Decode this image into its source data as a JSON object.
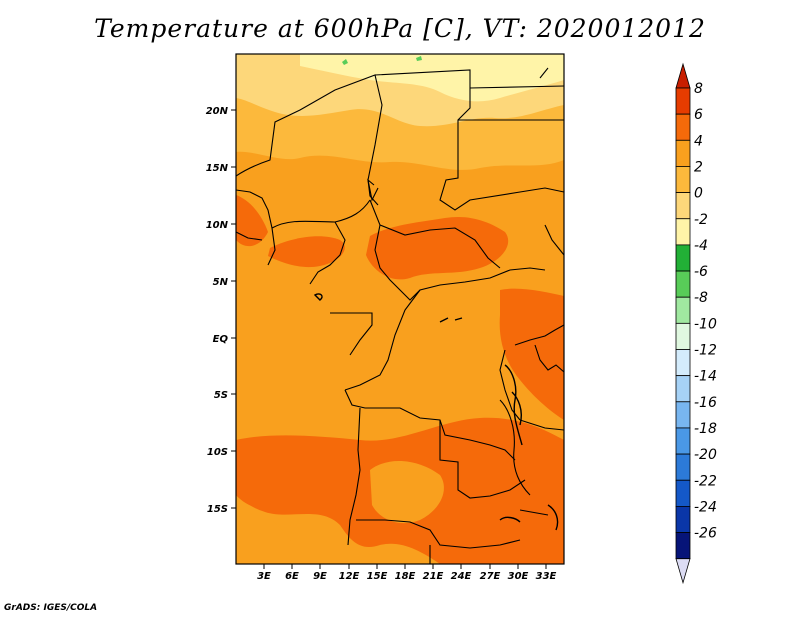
{
  "title": "Temperature at 600hPa [C], VT: 2020012012",
  "credit": "GrADS: IGES/COLA",
  "map": {
    "lat_labels": [
      "20N",
      "15N",
      "10N",
      "5N",
      "EQ",
      "5S",
      "10S",
      "15S"
    ],
    "lon_labels": [
      "3E",
      "6E",
      "9E",
      "12E",
      "15E",
      "18E",
      "21E",
      "24E",
      "27E",
      "30E",
      "33E"
    ]
  },
  "colorbar": {
    "labels": [
      "8",
      "6",
      "4",
      "2",
      "0",
      "-2",
      "-4",
      "-6",
      "-8",
      "-10",
      "-12",
      "-14",
      "-16",
      "-18",
      "-20",
      "-22",
      "-24",
      "-26"
    ],
    "colors": [
      "#c81e00",
      "#e63c00",
      "#f56a0a",
      "#f9a01e",
      "#fcb93c",
      "#fdd77a",
      "#fff4a8",
      "#22b036",
      "#58cc58",
      "#a0e8a0",
      "#e0f8e0",
      "#d4ecfc",
      "#a6d2f6",
      "#78b6f0",
      "#4a98e6",
      "#2c7ad8",
      "#1458c8",
      "#0a36a8",
      "#061478",
      "#dcdcf4"
    ]
  },
  "colors": {
    "bg_fill": "#f9a01e",
    "warm_fill": "#f56a0a",
    "cool_fill": "#fcb93c",
    "pale_fill": "#fdd77a",
    "paler_fill": "#fff4a8",
    "border": "#000000"
  }
}
